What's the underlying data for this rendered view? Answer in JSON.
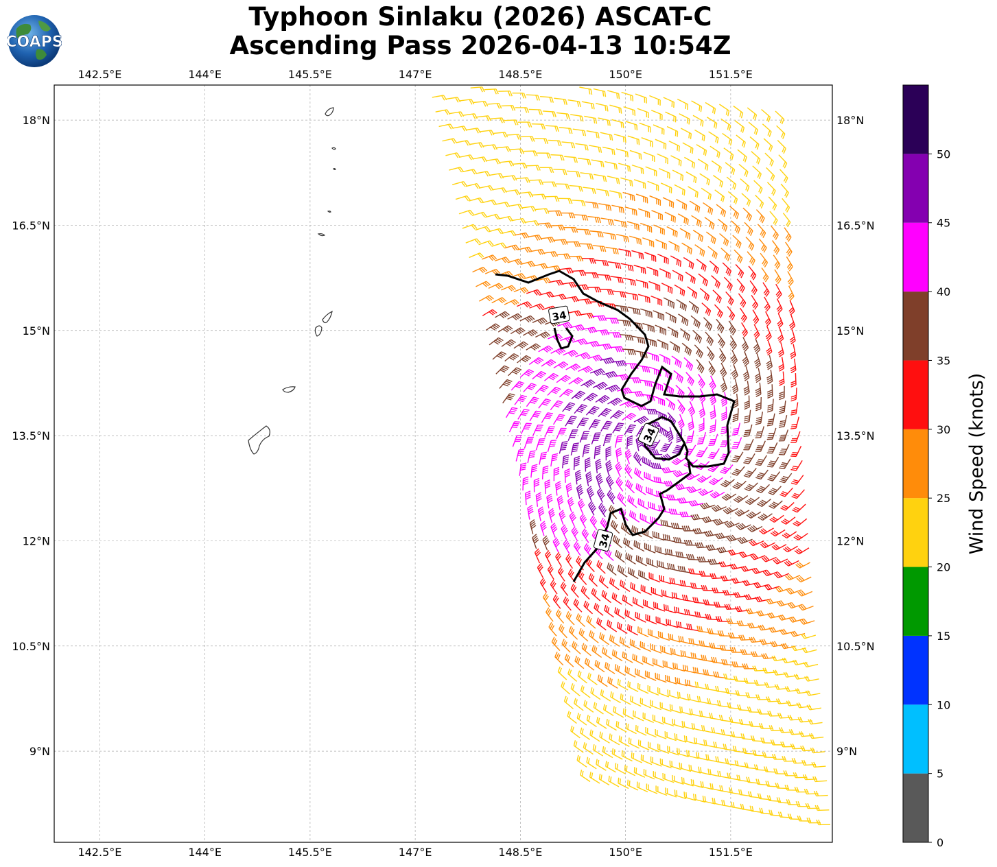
{
  "title": {
    "line1": "Typhoon Sinlaku (2026) ASCAT-C",
    "line2": "Ascending Pass 2026-04-13 10:54Z"
  },
  "logo": {
    "text": "COAPS"
  },
  "map": {
    "lon_ticks": [
      "142.5°E",
      "144°E",
      "145.5°E",
      "147°E",
      "148.5°E",
      "150°E",
      "151.5°E"
    ],
    "lat_ticks": [
      "18°N",
      "16.5°N",
      "15°N",
      "13.5°N",
      "12°N",
      "10.5°N",
      "9°N"
    ],
    "lon_values": [
      142.5,
      144,
      145.5,
      147,
      148.5,
      150,
      151.5
    ],
    "lat_values": [
      18,
      16.5,
      15,
      13.5,
      12,
      10.5,
      9
    ],
    "lon_range": [
      141.85,
      152.95
    ],
    "lat_range": [
      7.7,
      18.5
    ],
    "grid": true,
    "contour_label": "34",
    "contour_labels_count": 3
  },
  "colorbar": {
    "label": "Wind Speed (knots)",
    "ticks": [
      "0",
      "5",
      "10",
      "15",
      "20",
      "25",
      "30",
      "35",
      "40",
      "45",
      "50"
    ],
    "bins": [
      {
        "min": 0,
        "max": 5,
        "color": "#595959"
      },
      {
        "min": 5,
        "max": 10,
        "color": "#00bfff"
      },
      {
        "min": 10,
        "max": 15,
        "color": "#0033ff"
      },
      {
        "min": 15,
        "max": 20,
        "color": "#009900"
      },
      {
        "min": 20,
        "max": 25,
        "color": "#ffd20f"
      },
      {
        "min": 25,
        "max": 30,
        "color": "#ff8c0a"
      },
      {
        "min": 30,
        "max": 35,
        "color": "#ff0f0f"
      },
      {
        "min": 35,
        "max": 40,
        "color": "#7f3f2a"
      },
      {
        "min": 40,
        "max": 45,
        "color": "#ff00ff"
      },
      {
        "min": 45,
        "max": 50,
        "color": "#8400b0"
      },
      {
        "min": 50,
        "max": 55,
        "color": "#2b0057"
      }
    ]
  }
}
